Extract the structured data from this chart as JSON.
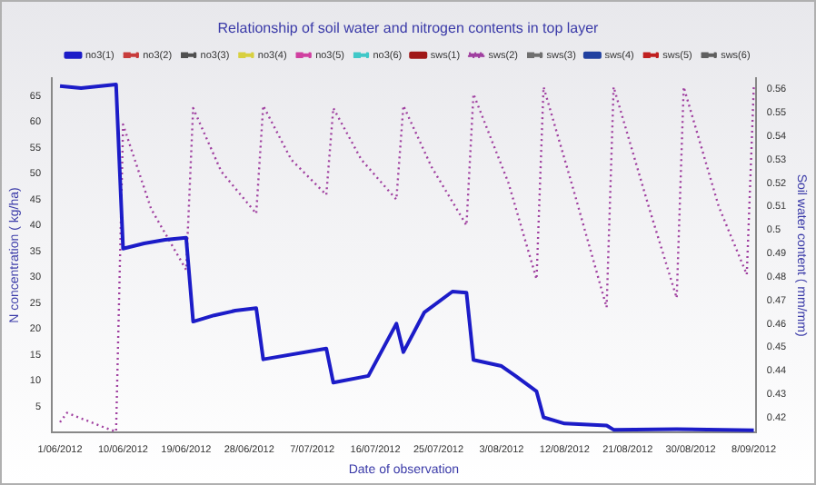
{
  "chart_data": {
    "type": "line",
    "title": "Relationship of soil water and nitrogen contents in top layer",
    "xlabel": "Date of observation",
    "ylabel": "N concentration ( kg/ha)",
    "y2label": "Soil water content ( mm/mm)",
    "legend": "top",
    "grid": false,
    "marker": "none",
    "xlim": [
      "2012-05-30T20:00",
      "2012-09-08T07:00"
    ],
    "xticks": [
      {
        "value": "2012-06-01",
        "label": "1/06/2012"
      },
      {
        "value": "2012-06-10",
        "label": "10/06/2012"
      },
      {
        "value": "2012-06-19",
        "label": "19/06/2012"
      },
      {
        "value": "2012-06-28",
        "label": "28/06/2012"
      },
      {
        "value": "2012-07-07",
        "label": "7/07/2012"
      },
      {
        "value": "2012-07-16",
        "label": "16/07/2012"
      },
      {
        "value": "2012-07-25",
        "label": "25/07/2012"
      },
      {
        "value": "2012-08-03",
        "label": "3/08/2012"
      },
      {
        "value": "2012-08-12",
        "label": "12/08/2012"
      },
      {
        "value": "2012-08-21",
        "label": "21/08/2012"
      },
      {
        "value": "2012-08-30",
        "label": "30/08/2012"
      },
      {
        "value": "2012-09-08",
        "label": "8/09/2012"
      }
    ],
    "ylim": [
      0,
      68.4
    ],
    "yticks": [
      5,
      10,
      15,
      20,
      25,
      30,
      35,
      40,
      45,
      50,
      55,
      60,
      65
    ],
    "y2lim": [
      0.4137,
      0.5647
    ],
    "y2ticks": [
      0.42,
      0.43,
      0.44,
      0.45,
      0.46,
      0.47,
      0.48,
      0.49,
      0.5,
      0.51,
      0.52,
      0.53,
      0.54,
      0.55,
      0.56
    ],
    "series": [
      {
        "name": "no3(1)",
        "color": "#1c1cc8",
        "line_style": "solid",
        "x": [
          "2012-06-01",
          "2012-06-04",
          "2012-06-09",
          "2012-06-10",
          "2012-06-13",
          "2012-06-16",
          "2012-06-19",
          "2012-06-20",
          "2012-06-23",
          "2012-06-26",
          "2012-06-29",
          "2012-06-30",
          "2012-07-09",
          "2012-07-10",
          "2012-07-15",
          "2012-07-19",
          "2012-07-20",
          "2012-07-23",
          "2012-07-27",
          "2012-07-29",
          "2012-07-30",
          "2012-08-03",
          "2012-08-05",
          "2012-08-08",
          "2012-08-09",
          "2012-08-12",
          "2012-08-18",
          "2012-08-19",
          "2012-08-28",
          "2012-09-08"
        ],
        "values": [
          66.9,
          66.5,
          67.2,
          35.5,
          36.5,
          37.2,
          37.6,
          21.4,
          22.6,
          23.5,
          24.0,
          14.1,
          16.2,
          9.6,
          10.9,
          21.0,
          15.5,
          23.2,
          27.2,
          27.0,
          14.0,
          12.8,
          10.9,
          7.9,
          2.9,
          1.7,
          1.3,
          0.5,
          0.6,
          0.4
        ]
      },
      {
        "name": "no3(2)",
        "color": "#c83c3c",
        "line_style": "dashed"
      },
      {
        "name": "no3(3)",
        "color": "#505050",
        "line_style": "dashed"
      },
      {
        "name": "no3(4)",
        "color": "#d8d040",
        "line_style": "dashed"
      },
      {
        "name": "no3(5)",
        "color": "#d040a0",
        "line_style": "dashed"
      },
      {
        "name": "no3(6)",
        "color": "#40c8c8",
        "line_style": "dashed"
      },
      {
        "name": "sws(1)",
        "color": "#a01818",
        "line_style": "solid"
      },
      {
        "name": "sws(2)",
        "color": "#a040a0",
        "line_style": "dotted",
        "axis": "y2",
        "x": [
          "2012-06-01",
          "2012-06-02",
          "2012-06-08",
          "2012-06-09",
          "2012-06-10",
          "2012-06-14",
          "2012-06-19",
          "2012-06-20",
          "2012-06-24",
          "2012-06-29",
          "2012-06-30",
          "2012-07-04",
          "2012-07-09",
          "2012-07-10",
          "2012-07-14",
          "2012-07-19",
          "2012-07-20",
          "2012-07-24",
          "2012-07-29",
          "2012-07-30",
          "2012-08-04",
          "2012-08-08",
          "2012-08-09",
          "2012-08-13",
          "2012-08-18",
          "2012-08-19",
          "2012-08-24",
          "2012-08-28",
          "2012-08-29",
          "2012-09-03",
          "2012-09-07",
          "2012-09-08"
        ],
        "values": [
          0.418,
          0.422,
          0.415,
          0.414,
          0.545,
          0.509,
          0.483,
          0.552,
          0.525,
          0.507,
          0.553,
          0.53,
          0.515,
          0.552,
          0.53,
          0.513,
          0.553,
          0.527,
          0.502,
          0.558,
          0.52,
          0.479,
          0.561,
          0.52,
          0.467,
          0.561,
          0.51,
          0.471,
          0.561,
          0.51,
          0.481,
          0.561
        ]
      },
      {
        "name": "sws(3)",
        "color": "#707070",
        "line_style": "dashed"
      },
      {
        "name": "sws(4)",
        "color": "#2040a0",
        "line_style": "solid"
      },
      {
        "name": "sws(5)",
        "color": "#c02020",
        "line_style": "dashed"
      },
      {
        "name": "sws(6)",
        "color": "#606060",
        "line_style": "dashed"
      }
    ]
  }
}
